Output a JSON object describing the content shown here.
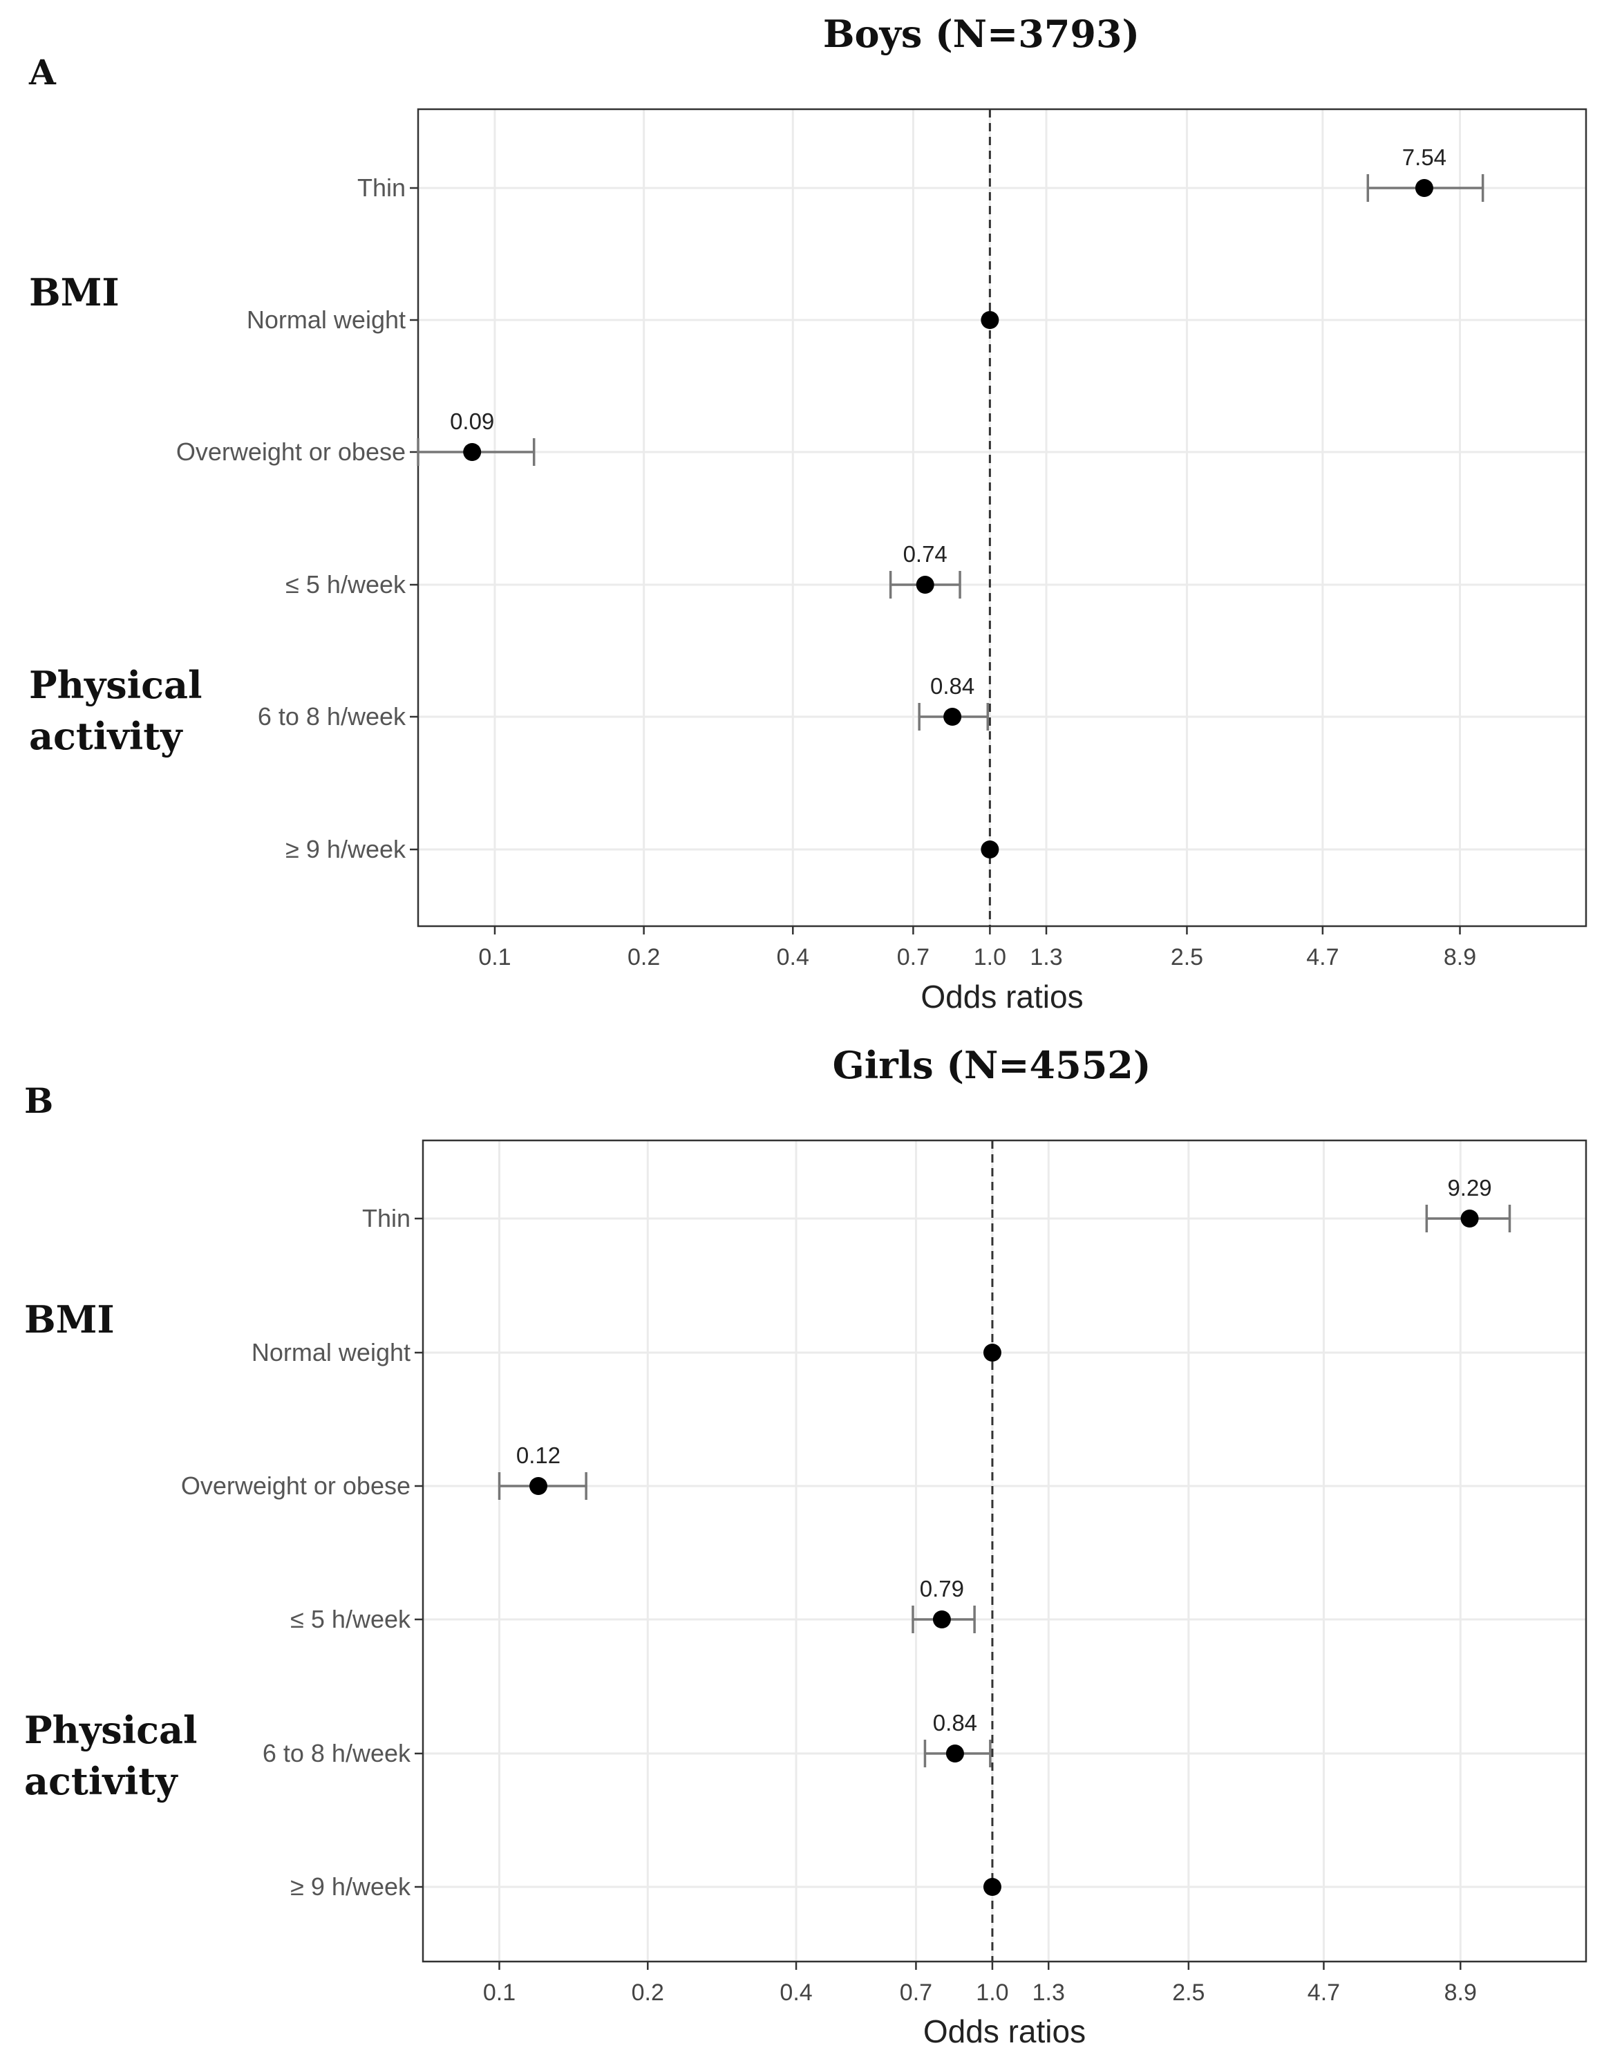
{
  "chart_data": [
    {
      "type": "scatter",
      "panel_label": "A",
      "title": "Boys (N=3793)",
      "xlabel": "Odds ratios",
      "x_scale": "log",
      "xlim": [
        0.07,
        16
      ],
      "x_ticks": [
        0.1,
        0.2,
        0.4,
        0.7,
        1.0,
        1.3,
        2.5,
        4.7,
        8.9
      ],
      "x_tick_labels": [
        "0.1",
        "0.2",
        "0.4",
        "0.7",
        "1.0",
        "1.3",
        "2.5",
        "4.7",
        "8.9"
      ],
      "reference_line": 1.0,
      "groups": [
        {
          "label": "BMI",
          "categories": [
            "Thin",
            "Normal weight",
            "Overweight or obese"
          ]
        },
        {
          "label": "Physical activity",
          "label_lines": [
            "Physical",
            "activity"
          ],
          "categories": [
            "≤ 5 h/week",
            "6 to 8 h/week",
            "≥ 9 h/week"
          ]
        }
      ],
      "rows": [
        {
          "label": "Thin",
          "or": 7.54,
          "lo": 5.8,
          "hi": 9.9,
          "value_label": "7.54"
        },
        {
          "label": "Normal weight",
          "or": 1.0,
          "lo": null,
          "hi": null,
          "value_label": ""
        },
        {
          "label": "Overweight or obese",
          "or": 0.09,
          "lo": 0.07,
          "hi": 0.12,
          "value_label": "0.09"
        },
        {
          "label": "≤ 5 h/week",
          "or": 0.74,
          "lo": 0.63,
          "hi": 0.87,
          "value_label": "0.74"
        },
        {
          "label": "6 to 8 h/week",
          "or": 0.84,
          "lo": 0.72,
          "hi": 0.99,
          "value_label": "0.84"
        },
        {
          "label": "≥ 9 h/week",
          "or": 1.0,
          "lo": null,
          "hi": null,
          "value_label": ""
        }
      ]
    },
    {
      "type": "scatter",
      "panel_label": "B",
      "title": "Girls (N=4552)",
      "xlabel": "Odds ratios",
      "x_scale": "log",
      "xlim": [
        0.07,
        16
      ],
      "x_ticks": [
        0.1,
        0.2,
        0.4,
        0.7,
        1.0,
        1.3,
        2.5,
        4.7,
        8.9
      ],
      "x_tick_labels": [
        "0.1",
        "0.2",
        "0.4",
        "0.7",
        "1.0",
        "1.3",
        "2.5",
        "4.7",
        "8.9"
      ],
      "reference_line": 1.0,
      "groups": [
        {
          "label": "BMI",
          "categories": [
            "Thin",
            "Normal weight",
            "Overweight or obese"
          ]
        },
        {
          "label": "Physical activity",
          "label_lines": [
            "Physical",
            "activity"
          ],
          "categories": [
            "≤ 5 h/week",
            "6 to 8 h/week",
            "≥ 9 h/week"
          ]
        }
      ],
      "rows": [
        {
          "label": "Thin",
          "or": 9.29,
          "lo": 7.6,
          "hi": 11.2,
          "value_label": "9.29"
        },
        {
          "label": "Normal weight",
          "or": 1.0,
          "lo": null,
          "hi": null,
          "value_label": ""
        },
        {
          "label": "Overweight or obese",
          "or": 0.12,
          "lo": 0.1,
          "hi": 0.15,
          "value_label": "0.12"
        },
        {
          "label": "≤ 5 h/week",
          "or": 0.79,
          "lo": 0.69,
          "hi": 0.92,
          "value_label": "0.79"
        },
        {
          "label": "6 to 8 h/week",
          "or": 0.84,
          "lo": 0.73,
          "hi": 0.99,
          "value_label": "0.84"
        },
        {
          "label": "≥ 9 h/week",
          "or": 1.0,
          "lo": null,
          "hi": null,
          "value_label": ""
        }
      ]
    }
  ]
}
